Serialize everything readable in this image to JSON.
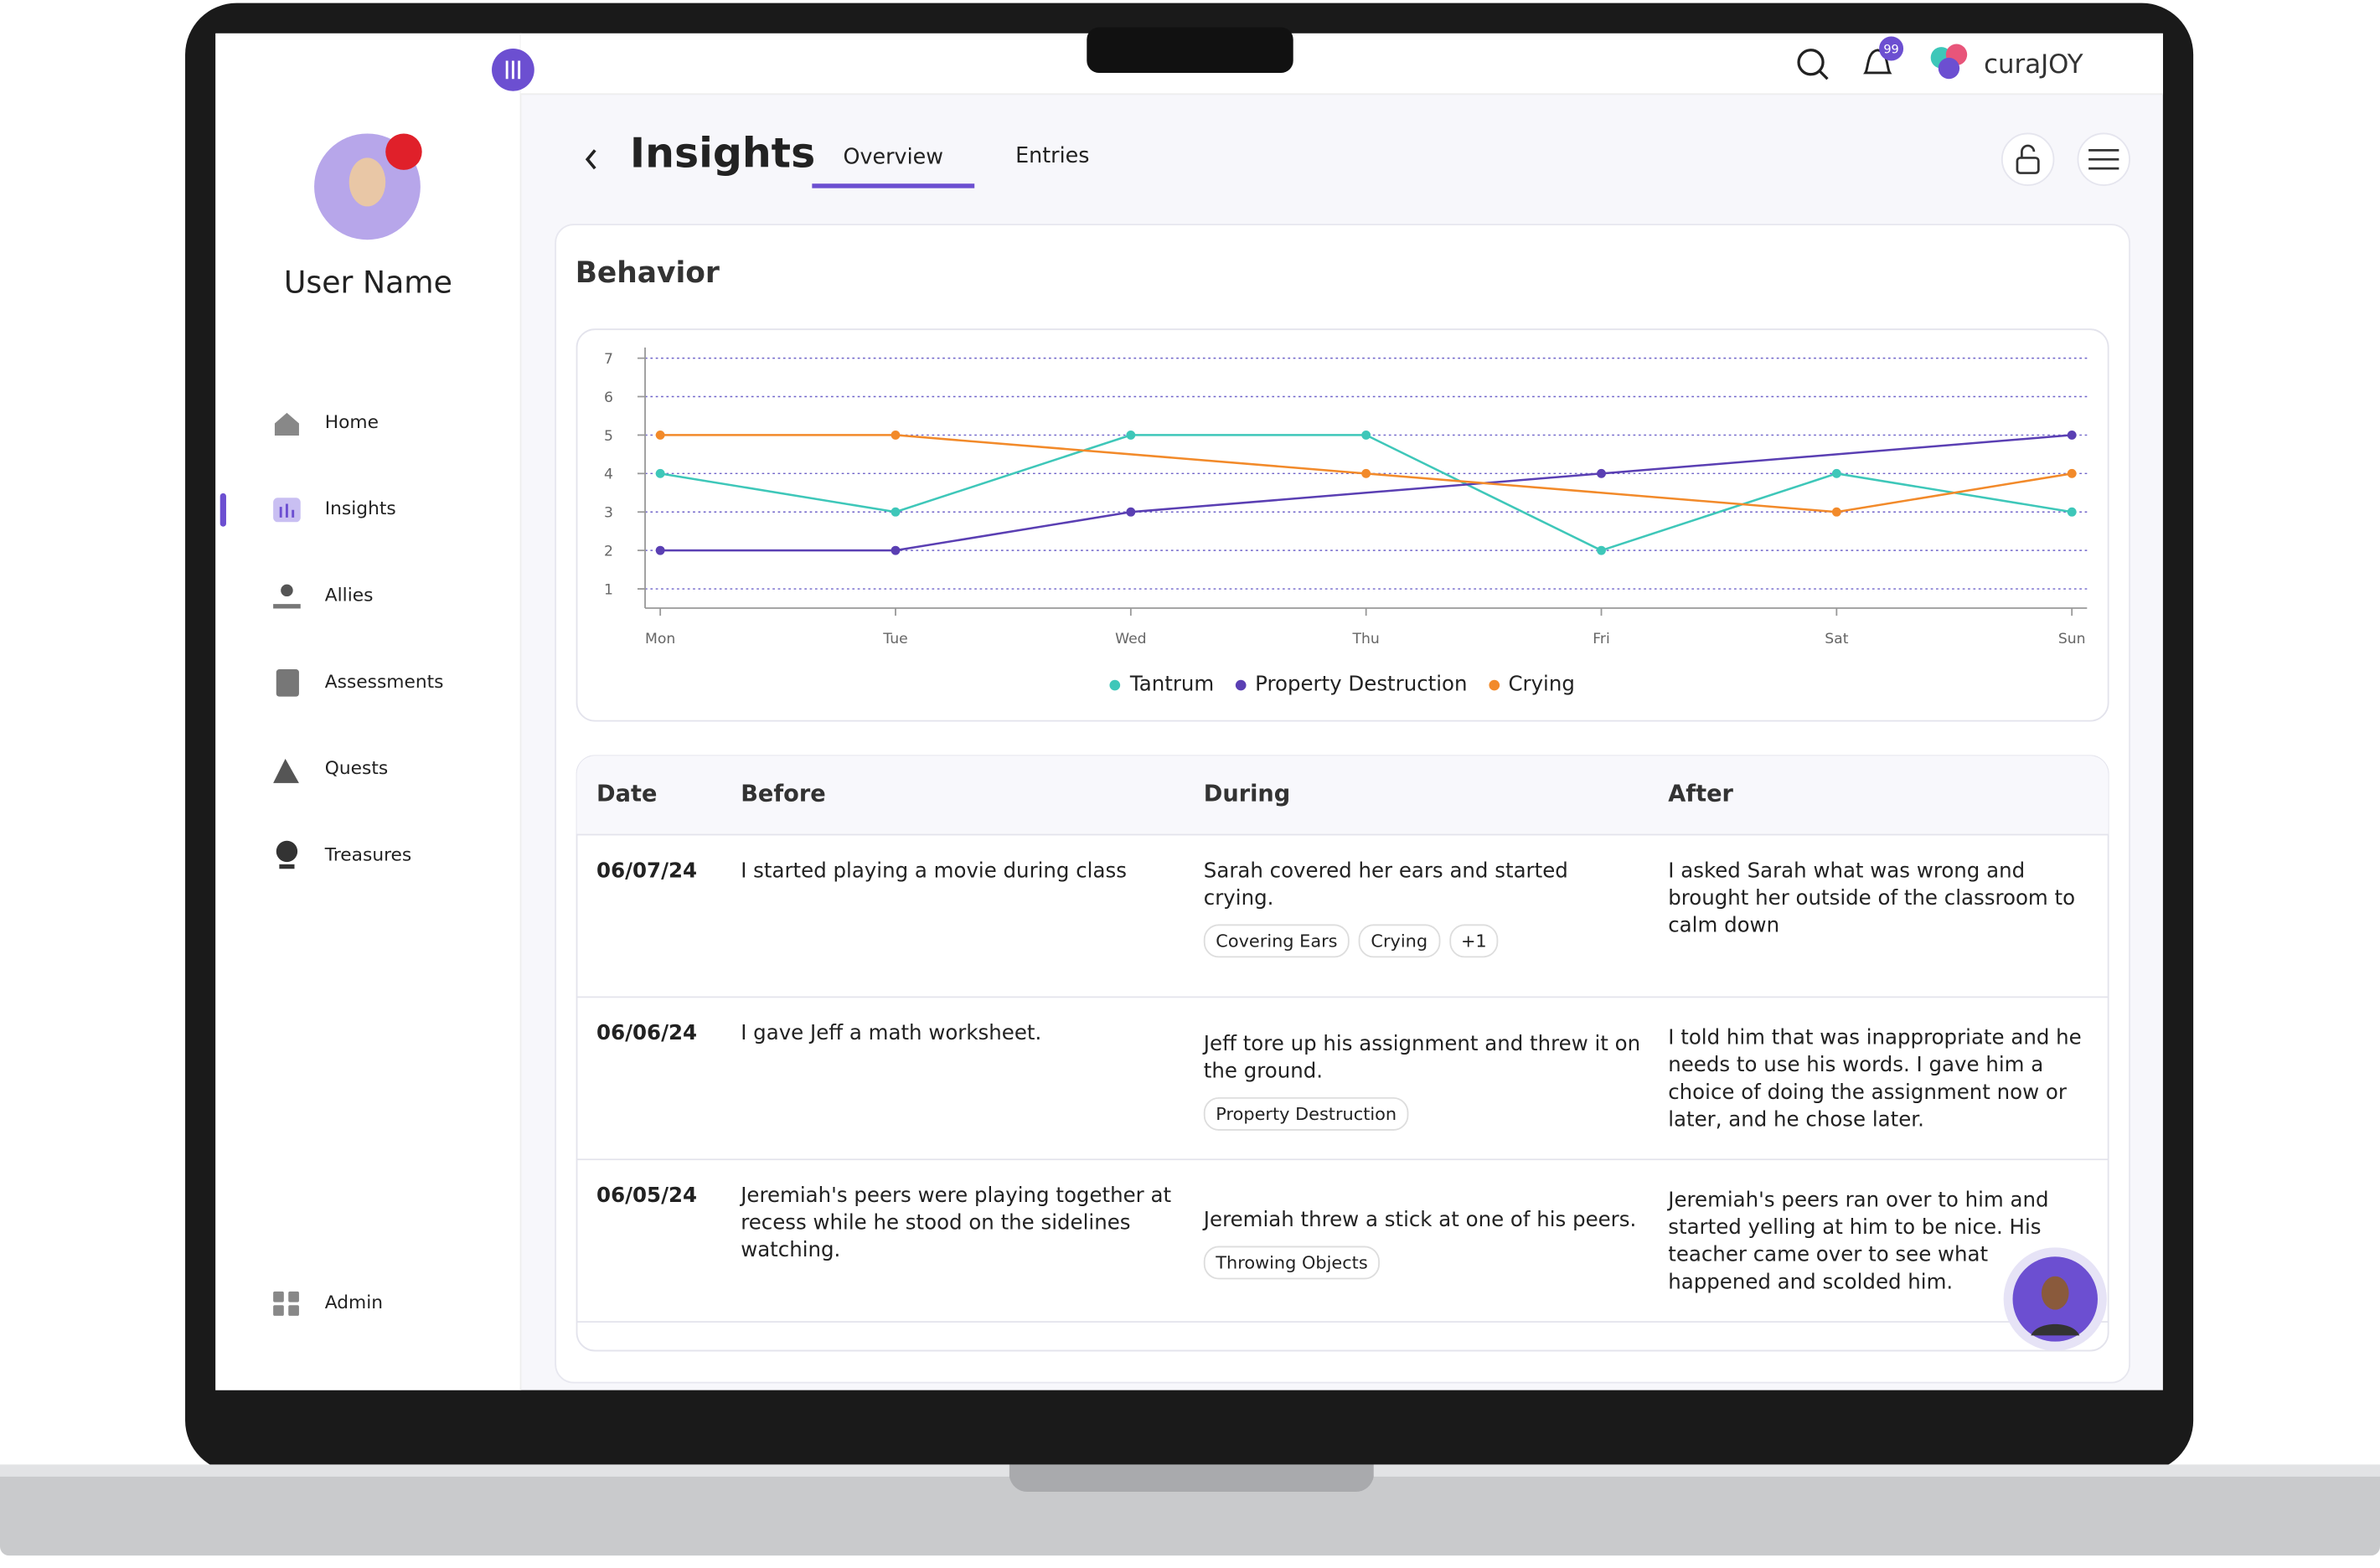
{
  "sidebar": {
    "user_name": "User Name",
    "nav": [
      "Home",
      "Insights",
      "Allies",
      "Assessments",
      "Quests",
      "Treasures"
    ],
    "admin": "Admin"
  },
  "topbar": {
    "badge": "99",
    "logo": "curaJOY"
  },
  "header": {
    "title": "Insights",
    "tabs": [
      "Overview",
      "Entries"
    ]
  },
  "card": {
    "title": "Behavior"
  },
  "chart_data": {
    "type": "line",
    "categories": [
      "Mon",
      "Tue",
      "Wed",
      "Thu",
      "Fri",
      "Sat",
      "Sun"
    ],
    "series": [
      {
        "name": "Tantrum",
        "color": "#3ec7b9",
        "values": [
          4,
          3,
          5,
          5,
          2,
          4,
          3
        ]
      },
      {
        "name": "Property Destruction",
        "color": "#5a3fb3",
        "values": [
          2,
          2,
          3,
          null,
          4,
          null,
          5
        ]
      },
      {
        "name": "Crying",
        "color": "#f28a2a",
        "values": [
          5,
          5,
          null,
          4,
          null,
          3,
          4
        ]
      }
    ],
    "span_gaps": true,
    "ylim": [
      0.5,
      7
    ],
    "yticks": [
      1,
      2,
      3,
      4,
      5,
      6,
      7
    ],
    "grid": true,
    "grid_color": "#6f63c9",
    "legend": "bottom"
  },
  "table": {
    "headers": [
      "Date",
      "Before",
      "During",
      "After"
    ],
    "rows": [
      {
        "date": "06/07/24",
        "before": "I started playing a movie during class",
        "during": "Sarah covered her ears and started crying.",
        "tags": [
          "Covering Ears",
          "Crying",
          "+1"
        ],
        "after": "I asked Sarah what was wrong and brought her outside of the classroom to calm down"
      },
      {
        "date": "06/06/24",
        "before": "I gave Jeff a math worksheet.",
        "during": "Jeff tore up his assignment and threw it on the ground.",
        "tags": [
          "Property Destruction"
        ],
        "after": "I told him that was inappropriate and he needs to use his words. I gave him a choice of doing the assignment now or later, and he chose later."
      },
      {
        "date": "06/05/24",
        "before": "Jeremiah's peers were playing together at recess while he stood on the sidelines watching.",
        "during": "Jeremiah threw a stick at one of his peers.",
        "tags": [
          "Throwing Objects"
        ],
        "after": "Jeremiah's peers ran over to him and started yelling at him to be nice. His teacher came over to see what happened and scolded him."
      }
    ]
  }
}
